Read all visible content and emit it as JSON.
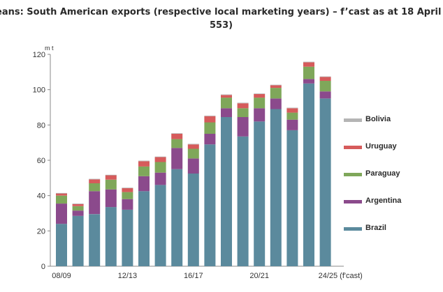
{
  "title_line1": "eans: South American exports (respective local marketing years) – f’cast as at 18 April",
  "title_line2": "553)",
  "colors": {
    "Brazil": "#5b8a9d",
    "Argentina": "#8b4a8c",
    "Paraguay": "#7fa75a",
    "Uruguay": "#d65b5b",
    "Bolivia": "#b5b5b5"
  },
  "chart_data": {
    "type": "bar",
    "stacked": true,
    "ylabel": "m t",
    "ylim": [
      0,
      120
    ],
    "yticks": [
      0,
      20,
      40,
      60,
      80,
      100,
      120
    ],
    "x_tick_labels": [
      "08/09",
      "12/13",
      "16/17",
      "20/21",
      "24/25 (f'cast)"
    ],
    "x_tick_label_indices": [
      0,
      4,
      8,
      12,
      16
    ],
    "legend_position": "right",
    "legend_order": [
      "Bolivia",
      "Uruguay",
      "Paraguay",
      "Argentina",
      "Brazil"
    ],
    "categories": [
      "2008/09",
      "2009/10",
      "2010/11",
      "2011/12",
      "2012/13",
      "2013/14",
      "2014/15",
      "2015/16",
      "2016/17",
      "2017/18",
      "2018/19",
      "2019/20",
      "2020/21",
      "2021/22",
      "2022/23",
      "2023/24",
      "2024/25"
    ],
    "series": [
      {
        "name": "Brazil",
        "values": [
          24,
          28.5,
          29.5,
          33.5,
          32,
          42.5,
          46,
          55,
          52.5,
          69,
          84.5,
          73.5,
          82,
          89,
          77,
          103.5,
          95
        ]
      },
      {
        "name": "Argentina",
        "values": [
          11.5,
          3,
          13,
          10,
          6,
          8.5,
          7,
          12,
          8.5,
          6,
          5,
          11,
          7.5,
          6,
          6,
          2.5,
          4
        ]
      },
      {
        "name": "Paraguay",
        "values": [
          4.5,
          2.5,
          4.5,
          5.5,
          4,
          5.5,
          6,
          5,
          5.5,
          6.5,
          6,
          5,
          6,
          6,
          4,
          7,
          6
        ]
      },
      {
        "name": "Uruguay",
        "values": [
          1.2,
          1.2,
          2.2,
          2.5,
          2.2,
          3,
          2.8,
          3,
          2.5,
          3.5,
          1.5,
          2.8,
          2,
          1.5,
          2.5,
          2.5,
          2.2
        ]
      },
      {
        "name": "Bolivia",
        "values": [
          0.3,
          0.3,
          0.3,
          0.3,
          0.3,
          0.3,
          0.3,
          0.3,
          0.3,
          0.3,
          0.3,
          0.3,
          0.3,
          0.3,
          0.3,
          0.3,
          0.3
        ]
      }
    ]
  }
}
